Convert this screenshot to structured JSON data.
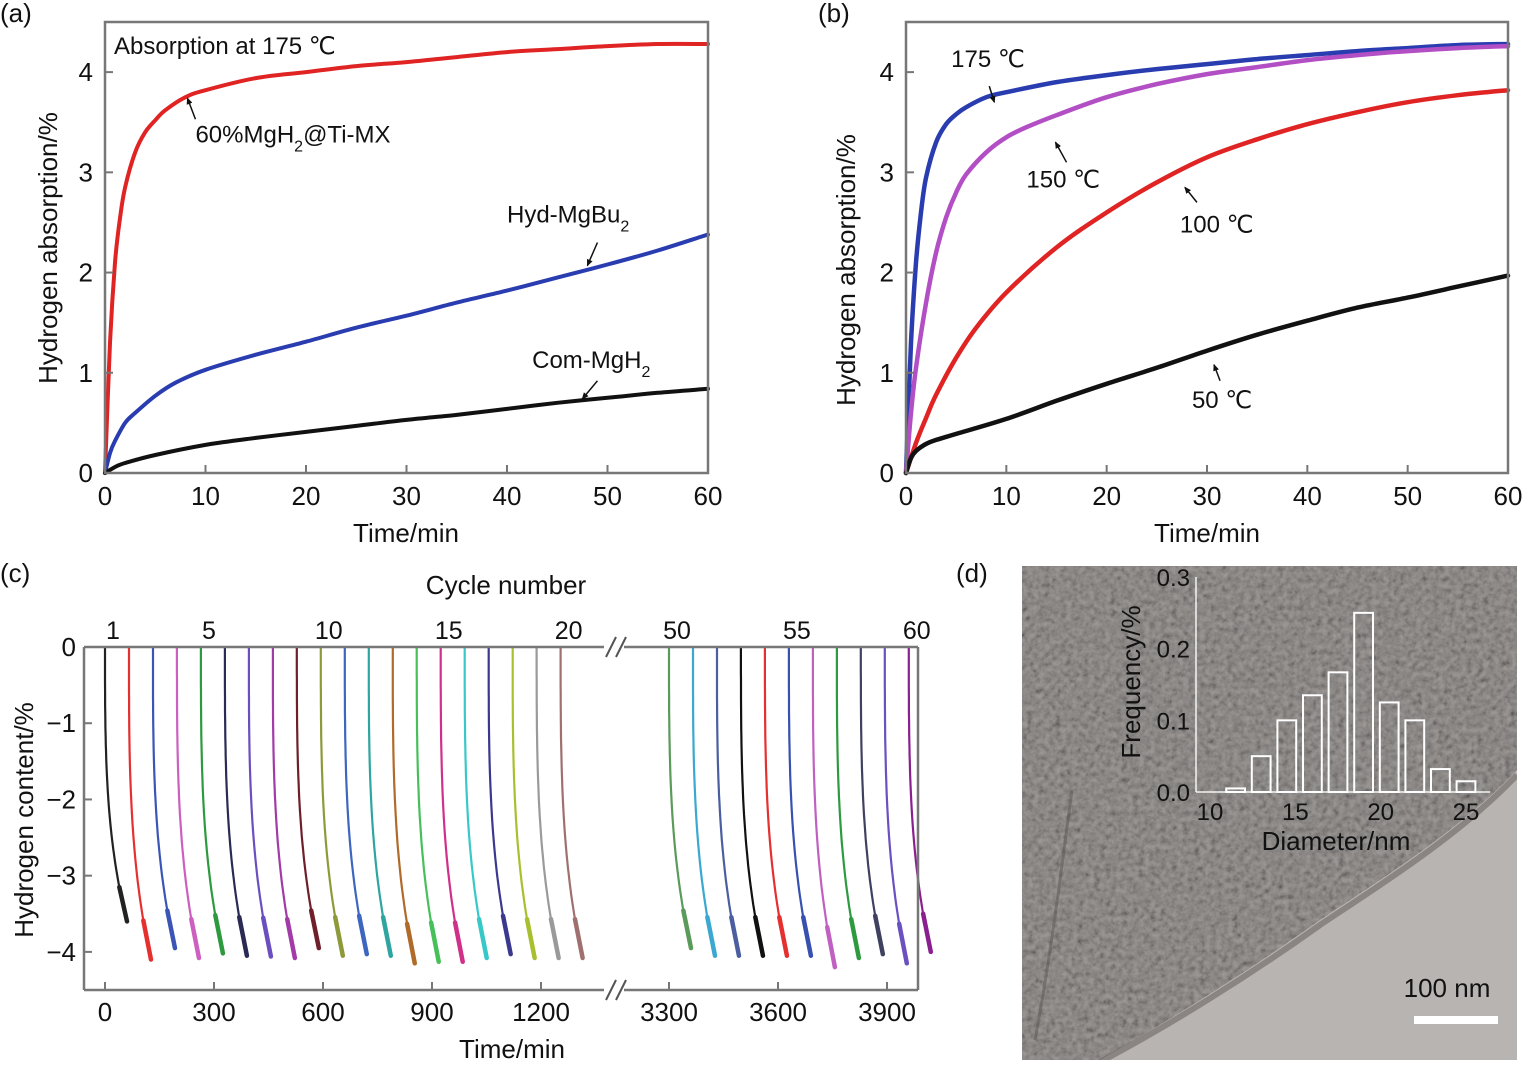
{
  "figure": {
    "panels": [
      "(a)",
      "(b)",
      "(c)",
      "(d)"
    ]
  },
  "chart_data": [
    {
      "id": "a",
      "panel_label": "(a)",
      "type": "line",
      "title": "",
      "annotation": "Absorption at 175 ℃",
      "xlabel": "Time/min",
      "ylabel": "Hydrogen absorption/%",
      "xlim": [
        0,
        60
      ],
      "ylim": [
        0,
        4.5
      ],
      "xticks": [
        0,
        10,
        20,
        30,
        40,
        50,
        60
      ],
      "yticks": [
        0,
        1,
        2,
        3,
        4
      ],
      "series": [
        {
          "name": "60%MgH₂@Ti-MX",
          "label": "60%MgH₂@Ti-MX",
          "color": "#e02424",
          "x": [
            0,
            0.5,
            1,
            1.5,
            2,
            3,
            4,
            5,
            6,
            8,
            10,
            15,
            20,
            25,
            30,
            35,
            40,
            45,
            50,
            55,
            60
          ],
          "y": [
            0,
            1.3,
            2.1,
            2.55,
            2.85,
            3.2,
            3.4,
            3.52,
            3.62,
            3.75,
            3.82,
            3.94,
            4.0,
            4.06,
            4.1,
            4.15,
            4.2,
            4.23,
            4.26,
            4.28,
            4.28
          ],
          "label_at": [
            9,
            3.3
          ],
          "arrow_from": [
            9,
            3.53
          ],
          "arrow_to": [
            8.2,
            3.74
          ]
        },
        {
          "name": "Hyd-MgBu₂",
          "label": "Hyd-MgBu₂",
          "color": "#2a3db0",
          "x": [
            0,
            0.5,
            1,
            2,
            3,
            5,
            7,
            10,
            15,
            20,
            25,
            30,
            35,
            40,
            45,
            50,
            55,
            60
          ],
          "y": [
            0,
            0.2,
            0.32,
            0.5,
            0.6,
            0.77,
            0.9,
            1.03,
            1.18,
            1.31,
            1.45,
            1.57,
            1.7,
            1.82,
            1.95,
            2.08,
            2.22,
            2.38
          ],
          "label_at": [
            40,
            2.5
          ],
          "arrow_from": [
            49,
            2.3
          ],
          "arrow_to": [
            48,
            2.07
          ]
        },
        {
          "name": "Com-MgH₂",
          "label": "Com-MgH₂",
          "color": "#111111",
          "x": [
            0,
            1,
            2,
            5,
            10,
            15,
            20,
            25,
            30,
            35,
            40,
            45,
            50,
            55,
            60
          ],
          "y": [
            0,
            0.06,
            0.1,
            0.18,
            0.28,
            0.35,
            0.41,
            0.47,
            0.53,
            0.58,
            0.64,
            0.7,
            0.75,
            0.8,
            0.84
          ],
          "label_at": [
            42.5,
            1.05
          ],
          "arrow_from": [
            49,
            0.92
          ],
          "arrow_to": [
            47.5,
            0.74
          ]
        }
      ]
    },
    {
      "id": "b",
      "panel_label": "(b)",
      "type": "line",
      "title": "",
      "xlabel": "Time/min",
      "ylabel": "Hydrogen absorption/%",
      "xlim": [
        0,
        60
      ],
      "ylim": [
        0,
        4.5
      ],
      "xticks": [
        0,
        10,
        20,
        30,
        40,
        50,
        60
      ],
      "yticks": [
        0,
        1,
        2,
        3,
        4
      ],
      "series": [
        {
          "name": "175 ℃",
          "label": "175 ℃",
          "color": "#2a3db0",
          "x": [
            0,
            0.5,
            1,
            1.5,
            2,
            3,
            4,
            5,
            6,
            8,
            10,
            15,
            20,
            25,
            30,
            35,
            40,
            45,
            50,
            55,
            60
          ],
          "y": [
            0,
            1.3,
            2.1,
            2.6,
            2.95,
            3.3,
            3.48,
            3.58,
            3.65,
            3.75,
            3.8,
            3.9,
            3.97,
            4.03,
            4.08,
            4.13,
            4.17,
            4.21,
            4.24,
            4.27,
            4.28
          ],
          "label_at": [
            4.5,
            4.05
          ],
          "arrow_from": [
            8.3,
            3.86
          ],
          "arrow_to": [
            8.8,
            3.7
          ]
        },
        {
          "name": "150 ℃",
          "label": "150 ℃",
          "color": "#b24fc4",
          "x": [
            0,
            0.5,
            1,
            2,
            3,
            4,
            5,
            6,
            8,
            10,
            12,
            15,
            20,
            25,
            30,
            35,
            40,
            45,
            50,
            55,
            60
          ],
          "y": [
            0,
            0.6,
            1.05,
            1.7,
            2.2,
            2.55,
            2.8,
            2.98,
            3.2,
            3.35,
            3.45,
            3.57,
            3.75,
            3.88,
            3.98,
            4.05,
            4.12,
            4.17,
            4.21,
            4.24,
            4.26
          ],
          "label_at": [
            12,
            2.85
          ],
          "arrow_from": [
            16,
            3.1
          ],
          "arrow_to": [
            14.9,
            3.3
          ]
        },
        {
          "name": "100 ℃",
          "label": "100 ℃",
          "color": "#e02424",
          "x": [
            0,
            1,
            2,
            3,
            5,
            7,
            10,
            15,
            20,
            25,
            30,
            35,
            40,
            45,
            50,
            55,
            60
          ],
          "y": [
            0,
            0.3,
            0.55,
            0.78,
            1.15,
            1.45,
            1.8,
            2.25,
            2.6,
            2.9,
            3.15,
            3.33,
            3.48,
            3.6,
            3.7,
            3.77,
            3.82
          ],
          "label_at": [
            27.3,
            2.4
          ],
          "arrow_from": [
            29,
            2.7
          ],
          "arrow_to": [
            27.8,
            2.85
          ]
        },
        {
          "name": "50 ℃",
          "label": "50 ℃",
          "color": "#111111",
          "x": [
            0,
            0.5,
            1,
            2,
            3,
            5,
            10,
            15,
            20,
            25,
            30,
            35,
            40,
            45,
            50,
            55,
            60
          ],
          "y": [
            0,
            0.15,
            0.22,
            0.29,
            0.33,
            0.39,
            0.54,
            0.72,
            0.89,
            1.05,
            1.22,
            1.38,
            1.52,
            1.65,
            1.75,
            1.86,
            1.97
          ],
          "label_at": [
            28.5,
            0.65
          ],
          "arrow_from": [
            31.3,
            0.92
          ],
          "arrow_to": [
            30.7,
            1.08
          ]
        }
      ]
    },
    {
      "id": "c",
      "panel_label": "(c)",
      "type": "line",
      "title": "",
      "top_axis_label": "Cycle number",
      "xlabel": "Time/min",
      "ylabel": "Hydrogen content/%",
      "ylim": [
        -4.5,
        0
      ],
      "yticks": [
        0,
        -1,
        -2,
        -3,
        -4
      ],
      "ytick_labels": [
        "0",
        "−1",
        "−2",
        "−3",
        "−4"
      ],
      "x_segments": [
        {
          "xlim": [
            -55,
            1350
          ],
          "xticks": [
            0,
            300,
            600,
            900,
            1200
          ]
        },
        {
          "xlim": [
            3240,
            4020
          ],
          "xticks": [
            3300,
            3600,
            3900
          ]
        }
      ],
      "axis_break": "//",
      "top_ticks": [
        {
          "cycle": "1",
          "time": 0
        },
        {
          "cycle": "5",
          "time": 264
        },
        {
          "cycle": "10",
          "time": 594
        },
        {
          "cycle": "15",
          "time": 924
        },
        {
          "cycle": "20",
          "time": 1254
        },
        {
          "cycle": "50",
          "time": 3300
        },
        {
          "cycle": "55",
          "time": 3630
        },
        {
          "cycle": "60",
          "time": 3960
        }
      ],
      "cycle_duration_min": 60,
      "series": [
        {
          "cycle": 1,
          "start": 0,
          "final": -3.6,
          "color": "#222222"
        },
        {
          "cycle": 2,
          "start": 66,
          "final": -4.1,
          "color": "#e53030"
        },
        {
          "cycle": 3,
          "start": 132,
          "final": -3.95,
          "color": "#3a55b5"
        },
        {
          "cycle": 4,
          "start": 198,
          "final": -4.08,
          "color": "#cc5fc0"
        },
        {
          "cycle": 5,
          "start": 264,
          "final": -4.02,
          "color": "#2e9a3f"
        },
        {
          "cycle": 6,
          "start": 330,
          "final": -4.05,
          "color": "#2a2a55"
        },
        {
          "cycle": 7,
          "start": 396,
          "final": -4.06,
          "color": "#6b4fc0"
        },
        {
          "cycle": 8,
          "start": 462,
          "final": -4.08,
          "color": "#a23aa8"
        },
        {
          "cycle": 9,
          "start": 528,
          "final": -3.95,
          "color": "#6e1f2a"
        },
        {
          "cycle": 10,
          "start": 594,
          "final": -4.05,
          "color": "#8e9a3a"
        },
        {
          "cycle": 11,
          "start": 660,
          "final": -4.03,
          "color": "#3d66c0"
        },
        {
          "cycle": 12,
          "start": 726,
          "final": -4.05,
          "color": "#2ea5a0"
        },
        {
          "cycle": 13,
          "start": 792,
          "final": -4.15,
          "color": "#b06a2a"
        },
        {
          "cycle": 14,
          "start": 858,
          "final": -4.13,
          "color": "#47c05a"
        },
        {
          "cycle": 15,
          "start": 924,
          "final": -4.13,
          "color": "#d0308a"
        },
        {
          "cycle": 16,
          "start": 990,
          "final": -4.08,
          "color": "#38c8c8"
        },
        {
          "cycle": 17,
          "start": 1056,
          "final": -4.03,
          "color": "#3b3890"
        },
        {
          "cycle": 18,
          "start": 1122,
          "final": -4.08,
          "color": "#a8c030"
        },
        {
          "cycle": 19,
          "start": 1188,
          "final": -4.08,
          "color": "#9a9a9a"
        },
        {
          "cycle": 20,
          "start": 1254,
          "final": -4.08,
          "color": "#a07070"
        },
        {
          "cycle": 50,
          "start": 3300,
          "final": -3.95,
          "color": "#5a9a5a"
        },
        {
          "cycle": 51,
          "start": 3366,
          "final": -4.05,
          "color": "#3aa8d0"
        },
        {
          "cycle": 52,
          "start": 3432,
          "final": -4.05,
          "color": "#4a5ea0"
        },
        {
          "cycle": 53,
          "start": 3498,
          "final": -4.05,
          "color": "#111111"
        },
        {
          "cycle": 54,
          "start": 3564,
          "final": -4.05,
          "color": "#e53030"
        },
        {
          "cycle": 55,
          "start": 3630,
          "final": -4.05,
          "color": "#3850b0"
        },
        {
          "cycle": 56,
          "start": 3696,
          "final": -4.2,
          "color": "#c060c0"
        },
        {
          "cycle": 57,
          "start": 3762,
          "final": -4.08,
          "color": "#2e9a3f"
        },
        {
          "cycle": 58,
          "start": 3828,
          "final": -4.03,
          "color": "#404060"
        },
        {
          "cycle": 59,
          "start": 3894,
          "final": -4.15,
          "color": "#6a50c0"
        },
        {
          "cycle": 60,
          "start": 3960,
          "final": -4.0,
          "color": "#8a2090"
        }
      ]
    },
    {
      "id": "d",
      "panel_label": "(d)",
      "type": "bar",
      "inset_of": "TEM micrograph",
      "xlabel": "Diameter/nm",
      "ylabel": "Frequency/%",
      "xlim": [
        9.5,
        26.5
      ],
      "ylim": [
        0,
        0.3
      ],
      "xticks": [
        10,
        15,
        20,
        25
      ],
      "yticks": [
        0.0,
        0.1,
        0.2,
        0.3
      ],
      "ytick_labels": [
        "0.0",
        "0.1",
        "0.2",
        "0.3"
      ],
      "categories": [
        11.5,
        13,
        14.5,
        16,
        17.5,
        19,
        20.5,
        22,
        23.5,
        25
      ],
      "values": [
        0.005,
        0.05,
        0.1,
        0.135,
        0.167,
        0.25,
        0.125,
        0.1,
        0.032,
        0.015
      ],
      "bar_width": 1.1,
      "scale_bar": "100 nm"
    }
  ]
}
